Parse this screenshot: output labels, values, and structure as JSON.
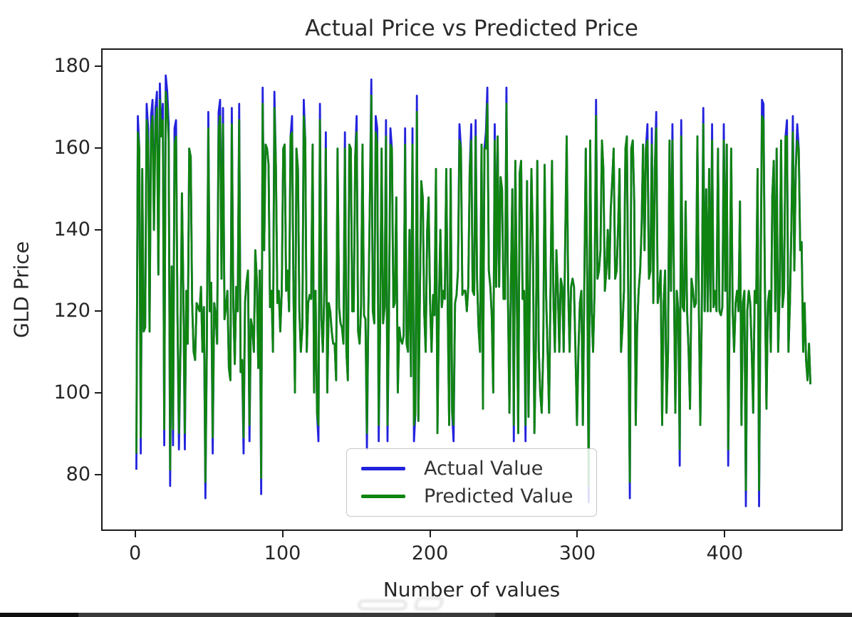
{
  "figure": {
    "background": "#ffffff",
    "spine_color": "#1b1b1b",
    "text_color": "#262626"
  },
  "chart_data": {
    "type": "line",
    "title": "Actual Price vs Predicted Price",
    "xlabel": "Number of values",
    "ylabel": "GLD Price",
    "xlim": [
      -23,
      480
    ],
    "ylim": [
      66.3,
      184.3
    ],
    "x_ticks": [
      0,
      100,
      200,
      300,
      400
    ],
    "y_ticks": [
      80,
      100,
      120,
      140,
      160,
      180
    ],
    "grid": false,
    "legend": {
      "position": "lower-center-left inside axes",
      "items": [
        {
          "label": "Actual Value",
          "color": "#2222dd"
        },
        {
          "label": "Predicted Value",
          "color": "#108410"
        }
      ]
    },
    "x_description": "sample index 0-459, plotted sequentially",
    "series": [
      {
        "name": "Actual Value",
        "color": "#2222dd",
        "values": [
          81,
          168,
          160,
          85,
          155,
          115,
          116,
          171,
          165,
          115,
          168,
          172,
          140,
          170,
          174,
          129,
          176,
          163,
          171,
          87,
          178,
          174,
          166,
          77,
          131,
          87,
          165,
          167,
          120,
          86,
          110,
          149,
          125,
          86,
          125,
          112,
          160,
          158,
          122,
          110,
          108,
          122,
          121,
          120,
          126,
          110,
          121,
          74,
          111,
          169,
          120,
          127,
          85,
          122,
          119,
          112,
          169,
          172,
          128,
          170,
          118,
          121,
          125,
          106,
          103,
          170,
          122,
          107,
          126,
          120,
          171,
          105,
          108,
          85,
          122,
          127,
          130,
          88,
          118,
          116,
          110,
          135,
          128,
          106,
          130,
          75,
          175,
          135,
          161,
          160,
          156,
          121,
          125,
          110,
          174,
          156,
          122,
          125,
          115,
          125,
          160,
          161,
          125,
          130,
          120,
          163,
          168,
          125,
          100,
          160,
          155,
          120,
          110,
          116,
          172,
          162,
          110,
          122,
          124,
          123,
          161,
          100,
          125,
          95,
          88,
          171,
          118,
          110,
          125,
          164,
          100,
          122,
          120,
          115,
          112,
          112,
          103,
          160,
          121,
          117,
          116,
          112,
          164,
          110,
          103,
          161,
          160,
          120,
          120,
          158,
          168,
          115,
          112,
          121,
          161,
          119,
          118,
          86,
          121,
          148,
          177,
          120,
          117,
          168,
          165,
          88,
          118,
          160,
          117,
          121,
          167,
          88,
          120,
          165,
          160,
          121,
          122,
          148,
          100,
          116,
          113,
          112,
          114,
          165,
          112,
          110,
          140,
          104,
          165,
          88,
          95,
          173,
          93,
          122,
          152,
          148,
          120,
          110,
          140,
          148,
          122,
          110,
          124,
          119,
          155,
          90,
          121,
          140,
          121,
          125,
          123,
          155,
          120,
          92,
          155,
          95,
          88,
          122,
          124,
          130,
          166,
          160,
          124,
          125,
          125,
          120,
          126,
          155,
          166,
          125,
          124,
          167,
          128,
          116,
          110,
          161,
          96,
          160,
          164,
          175,
          130,
          126,
          119,
          100,
          166,
          126,
          163,
          126,
          153,
          150,
          123,
          123,
          175,
          124,
          95,
          126,
          150,
          88,
          157,
          126,
          90,
          154,
          157,
          123,
          125,
          88,
          152,
          94,
          128,
          155,
          137,
          90,
          110,
          157,
          110,
          100,
          95,
          110,
          156,
          124,
          110,
          95,
          125,
          157,
          122,
          110,
          135,
          125,
          110,
          128,
          126,
          110,
          137,
          163,
          126,
          110,
          126,
          128,
          126,
          110,
          92,
          110,
          122,
          125,
          92,
          126,
          160,
          128,
          73,
          162,
          120,
          110,
          125,
          172,
          128,
          130,
          135,
          162,
          155,
          125,
          130,
          140,
          128,
          145,
          152,
          160,
          128,
          130,
          140,
          155,
          110,
          116,
          125,
          160,
          163,
          120,
          74,
          160,
          162,
          147,
          92,
          116,
          125,
          130,
          140,
          161,
          135,
          160,
          166,
          128,
          130,
          165,
          122,
          155,
          169,
          122,
          125,
          130,
          92,
          122,
          130,
          95,
          110,
          162,
          125,
          166,
          128,
          95,
          125,
          120,
          82,
          167,
          121,
          120,
          147,
          120,
          110,
          96,
          128,
          125,
          121,
          122,
          163,
          120,
          92,
          120,
          170,
          120,
          150,
          120,
          155,
          120,
          166,
          121,
          125,
          120,
          160,
          120,
          119,
          121,
          166,
          125,
          161,
          82,
          122,
          160,
          120,
          110,
          122,
          125,
          120,
          147,
          92,
          122,
          125,
          72,
          120,
          125,
          122,
          110,
          95,
          125,
          122,
          155,
          72,
          125,
          172,
          171,
          125,
          96,
          122,
          125,
          110,
          148,
          157,
          120,
          160,
          110,
          125,
          162,
          121,
          125,
          163,
          167,
          110,
          122,
          140,
          168,
          130,
          155,
          166,
          160,
          135,
          137,
          110,
          122,
          108,
          103,
          112,
          102
        ]
      },
      {
        "name": "Predicted Value",
        "color": "#108410",
        "values": [
          85,
          164,
          160,
          89,
          155,
          115,
          116,
          167,
          161,
          115,
          164,
          168,
          140,
          166,
          170,
          129,
          172,
          163,
          167,
          91,
          174,
          170,
          162,
          81,
          131,
          91,
          161,
          163,
          120,
          90,
          110,
          149,
          125,
          90,
          125,
          112,
          160,
          158,
          122,
          110,
          108,
          122,
          121,
          120,
          126,
          110,
          121,
          78,
          111,
          165,
          120,
          127,
          89,
          122,
          119,
          112,
          165,
          168,
          128,
          166,
          118,
          121,
          125,
          106,
          103,
          166,
          122,
          107,
          126,
          120,
          167,
          105,
          108,
          89,
          122,
          127,
          130,
          92,
          118,
          116,
          110,
          135,
          128,
          106,
          130,
          79,
          171,
          135,
          161,
          160,
          156,
          121,
          125,
          110,
          170,
          156,
          122,
          125,
          115,
          125,
          160,
          161,
          125,
          130,
          120,
          163,
          164,
          125,
          100,
          160,
          155,
          120,
          110,
          116,
          168,
          162,
          110,
          122,
          124,
          123,
          161,
          100,
          125,
          95,
          92,
          167,
          118,
          110,
          125,
          160,
          100,
          122,
          120,
          115,
          112,
          112,
          103,
          160,
          121,
          117,
          116,
          112,
          160,
          110,
          103,
          161,
          160,
          120,
          120,
          158,
          164,
          115,
          112,
          121,
          161,
          119,
          118,
          90,
          121,
          148,
          173,
          120,
          117,
          164,
          161,
          92,
          118,
          160,
          117,
          121,
          163,
          92,
          120,
          161,
          160,
          121,
          122,
          148,
          100,
          116,
          113,
          112,
          114,
          161,
          112,
          110,
          140,
          104,
          161,
          92,
          95,
          169,
          93,
          122,
          152,
          148,
          120,
          110,
          140,
          148,
          122,
          110,
          124,
          119,
          155,
          90,
          121,
          140,
          121,
          125,
          123,
          155,
          120,
          92,
          155,
          95,
          92,
          122,
          124,
          130,
          162,
          160,
          124,
          125,
          125,
          120,
          126,
          155,
          162,
          125,
          124,
          163,
          128,
          116,
          110,
          161,
          96,
          160,
          160,
          171,
          130,
          126,
          119,
          100,
          162,
          126,
          163,
          126,
          153,
          150,
          123,
          123,
          171,
          124,
          95,
          126,
          150,
          92,
          157,
          126,
          90,
          154,
          157,
          123,
          125,
          92,
          152,
          94,
          128,
          155,
          137,
          90,
          110,
          157,
          110,
          100,
          95,
          110,
          156,
          124,
          110,
          95,
          125,
          157,
          122,
          110,
          135,
          125,
          110,
          128,
          126,
          110,
          137,
          163,
          126,
          110,
          126,
          128,
          126,
          110,
          92,
          110,
          122,
          125,
          92,
          126,
          160,
          128,
          77,
          162,
          120,
          110,
          125,
          168,
          128,
          130,
          135,
          162,
          155,
          125,
          130,
          140,
          128,
          145,
          152,
          160,
          128,
          130,
          140,
          155,
          110,
          116,
          125,
          160,
          163,
          120,
          78,
          160,
          162,
          147,
          92,
          116,
          125,
          130,
          140,
          161,
          135,
          160,
          162,
          128,
          130,
          161,
          122,
          155,
          165,
          122,
          125,
          130,
          92,
          122,
          130,
          95,
          110,
          162,
          125,
          162,
          128,
          95,
          125,
          120,
          86,
          163,
          121,
          120,
          147,
          120,
          110,
          96,
          128,
          125,
          121,
          122,
          163,
          120,
          92,
          120,
          166,
          120,
          150,
          120,
          155,
          120,
          162,
          121,
          125,
          120,
          160,
          120,
          119,
          121,
          162,
          125,
          161,
          86,
          122,
          160,
          120,
          110,
          122,
          125,
          120,
          147,
          92,
          122,
          125,
          76,
          120,
          125,
          122,
          110,
          95,
          125,
          122,
          155,
          76,
          125,
          168,
          167,
          125,
          96,
          122,
          125,
          110,
          148,
          157,
          120,
          160,
          110,
          125,
          162,
          121,
          125,
          163,
          163,
          110,
          122,
          140,
          164,
          130,
          155,
          162,
          160,
          135,
          137,
          110,
          122,
          108,
          103,
          112,
          102
        ]
      }
    ]
  },
  "watermark": {
    "color": "#d9d9d9"
  },
  "bottom_bar": {
    "track_color": "#232323",
    "left_cap_color": "#0f0f0f",
    "thumb_color": "#3a3a3a"
  }
}
